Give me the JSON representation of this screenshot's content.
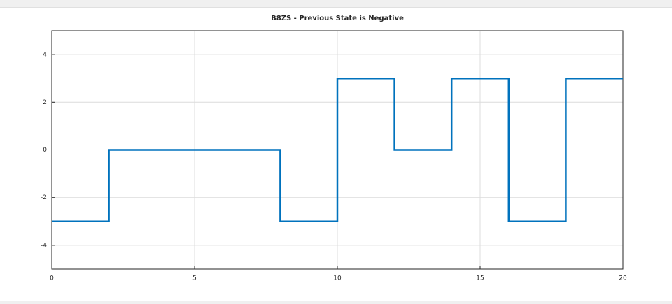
{
  "chart_data": {
    "type": "line",
    "title": "B8ZS - Previous State is Negative",
    "series": [
      {
        "color": "#0072bd",
        "x": [
          0,
          2,
          2,
          8,
          8,
          10,
          10,
          12,
          12,
          14,
          14,
          16,
          16,
          18,
          18,
          20
        ],
        "values": [
          -3,
          -3,
          0,
          0,
          -3,
          -3,
          3,
          3,
          0,
          0,
          3,
          3,
          -3,
          -3,
          3,
          3
        ]
      }
    ],
    "xlim": [
      0,
      20
    ],
    "xticks": [
      0,
      5,
      10,
      15,
      20
    ],
    "ylim": [
      -5,
      5
    ],
    "yticks": [
      -4,
      -2,
      0,
      2,
      4
    ],
    "grid": true
  }
}
